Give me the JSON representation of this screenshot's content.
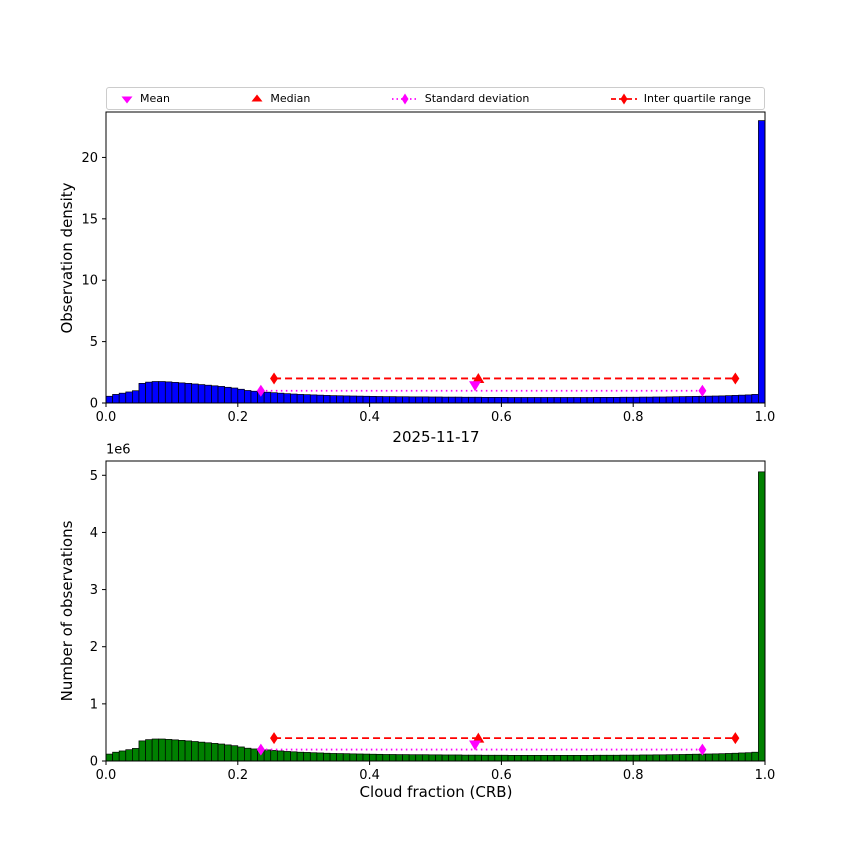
{
  "figure": {
    "background": "#ffffff"
  },
  "legend": {
    "items": [
      {
        "label": "Mean",
        "marker": "triangle-down",
        "color": "#ff00ff"
      },
      {
        "label": "Median",
        "marker": "triangle-up",
        "color": "#ff0000"
      },
      {
        "label": "Standard deviation",
        "marker": "diamond-dotted-line",
        "color": "#ff00ff"
      },
      {
        "label": "Inter quartile range",
        "marker": "diamond-dashed-line",
        "color": "#ff0000"
      }
    ]
  },
  "chart_data": [
    {
      "type": "bar",
      "subtype": "histogram",
      "title": "",
      "xlabel": "",
      "ylabel": "Observation density",
      "xlim": [
        0,
        1
      ],
      "ylim": [
        0,
        23.7
      ],
      "bin_width": 0.01,
      "bar_color": "#0000ff",
      "bar_edge_color": "#000000",
      "grid": false,
      "xticks": [
        0,
        0.2,
        0.4,
        0.6,
        0.8,
        1.0
      ],
      "xtick_labels": [
        "0.0",
        "0.2",
        "0.4",
        "0.6",
        "0.8",
        "1.0"
      ],
      "yticks": [
        0,
        5,
        10,
        15,
        20
      ],
      "ytick_labels": [
        "0",
        "5",
        "10",
        "15",
        "20"
      ],
      "values": [
        0.55,
        0.7,
        0.8,
        0.9,
        1.0,
        1.6,
        1.7,
        1.75,
        1.75,
        1.72,
        1.68,
        1.64,
        1.6,
        1.55,
        1.5,
        1.45,
        1.4,
        1.35,
        1.28,
        1.22,
        1.12,
        1.02,
        0.96,
        0.92,
        0.88,
        0.84,
        0.8,
        0.76,
        0.73,
        0.7,
        0.68,
        0.66,
        0.64,
        0.62,
        0.6,
        0.59,
        0.58,
        0.57,
        0.56,
        0.55,
        0.54,
        0.53,
        0.52,
        0.52,
        0.51,
        0.51,
        0.5,
        0.5,
        0.5,
        0.49,
        0.49,
        0.48,
        0.48,
        0.48,
        0.47,
        0.47,
        0.47,
        0.46,
        0.46,
        0.46,
        0.46,
        0.45,
        0.45,
        0.45,
        0.45,
        0.45,
        0.45,
        0.45,
        0.45,
        0.45,
        0.45,
        0.45,
        0.45,
        0.45,
        0.46,
        0.46,
        0.46,
        0.46,
        0.47,
        0.47,
        0.47,
        0.48,
        0.48,
        0.49,
        0.49,
        0.5,
        0.51,
        0.52,
        0.53,
        0.54,
        0.55,
        0.56,
        0.57,
        0.58,
        0.6,
        0.62,
        0.64,
        0.66,
        0.7,
        23.0
      ],
      "markers": {
        "mean": {
          "x": 0.56,
          "y": 1.4,
          "color": "#ff00ff"
        },
        "median": {
          "x": 0.565,
          "y": 2.0,
          "color": "#ff0000"
        },
        "std": {
          "x1": 0.235,
          "x2": 0.905,
          "y": 1.0,
          "color": "#ff00ff",
          "style": "dotted"
        },
        "iqr": {
          "x1": 0.255,
          "x2": 0.955,
          "y": 2.0,
          "color": "#ff0000",
          "style": "dashed"
        }
      }
    },
    {
      "type": "bar",
      "subtype": "histogram",
      "title": "2025-11-17",
      "xlabel": "Cloud fraction (CRB)",
      "ylabel": "Number of observations",
      "y_offset_label": "1e6",
      "xlim": [
        0,
        1
      ],
      "ylim": [
        0,
        5.25
      ],
      "bin_width": 0.01,
      "bar_color": "#008000",
      "bar_edge_color": "#000000",
      "grid": false,
      "xticks": [
        0,
        0.2,
        0.4,
        0.6,
        0.8,
        1.0
      ],
      "xtick_labels": [
        "0.0",
        "0.2",
        "0.4",
        "0.6",
        "0.8",
        "1.0"
      ],
      "yticks": [
        0,
        1,
        2,
        3,
        4,
        5
      ],
      "ytick_labels": [
        "0",
        "1",
        "2",
        "3",
        "4",
        "5"
      ],
      "values": [
        0.121,
        0.154,
        0.176,
        0.198,
        0.22,
        0.352,
        0.374,
        0.385,
        0.385,
        0.378,
        0.37,
        0.361,
        0.352,
        0.341,
        0.33,
        0.319,
        0.308,
        0.297,
        0.282,
        0.268,
        0.246,
        0.224,
        0.211,
        0.202,
        0.194,
        0.185,
        0.176,
        0.167,
        0.161,
        0.154,
        0.15,
        0.145,
        0.141,
        0.136,
        0.132,
        0.13,
        0.128,
        0.125,
        0.123,
        0.121,
        0.119,
        0.117,
        0.114,
        0.114,
        0.112,
        0.112,
        0.11,
        0.11,
        0.11,
        0.108,
        0.108,
        0.106,
        0.106,
        0.106,
        0.103,
        0.103,
        0.103,
        0.101,
        0.101,
        0.101,
        0.101,
        0.099,
        0.099,
        0.099,
        0.099,
        0.099,
        0.099,
        0.099,
        0.099,
        0.099,
        0.099,
        0.099,
        0.099,
        0.099,
        0.101,
        0.101,
        0.101,
        0.101,
        0.103,
        0.103,
        0.103,
        0.106,
        0.106,
        0.108,
        0.108,
        0.11,
        0.112,
        0.114,
        0.117,
        0.119,
        0.121,
        0.123,
        0.125,
        0.128,
        0.132,
        0.136,
        0.141,
        0.145,
        0.154,
        5.06
      ],
      "markers": {
        "mean": {
          "x": 0.56,
          "y": 0.28,
          "color": "#ff00ff"
        },
        "median": {
          "x": 0.565,
          "y": 0.4,
          "color": "#ff0000"
        },
        "std": {
          "x1": 0.235,
          "x2": 0.905,
          "y": 0.2,
          "color": "#ff00ff",
          "style": "dotted"
        },
        "iqr": {
          "x1": 0.255,
          "x2": 0.955,
          "y": 0.4,
          "color": "#ff0000",
          "style": "dashed"
        }
      }
    }
  ]
}
